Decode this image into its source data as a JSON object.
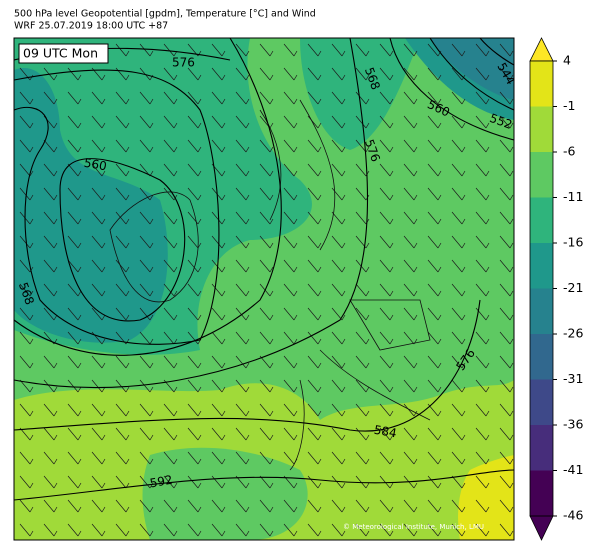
{
  "header": {
    "title": "500 hPa level Geopotential [gpdm], Temperature [°C] and Wind",
    "subtitle": "WRF 25.07.2019 18:00 UTC +87"
  },
  "map": {
    "time_label": "09 UTC Mon",
    "credit": "© Meteorological Institute, Munich, LMU",
    "contour_labels": [
      576,
      568,
      544,
      560,
      552,
      560,
      568,
      576,
      584,
      592,
      576
    ]
  },
  "colorbar": {
    "ticks": [
      4,
      -1,
      -6,
      -11,
      -16,
      -21,
      -26,
      -31,
      -36,
      -41,
      -46
    ],
    "colors": [
      "#fde725",
      "#e3e418",
      "#a0da39",
      "#5ec962",
      "#2fb47c",
      "#1f988b",
      "#26828e",
      "#31688e",
      "#3e4989",
      "#472d7b",
      "#440154",
      "#440154"
    ]
  }
}
